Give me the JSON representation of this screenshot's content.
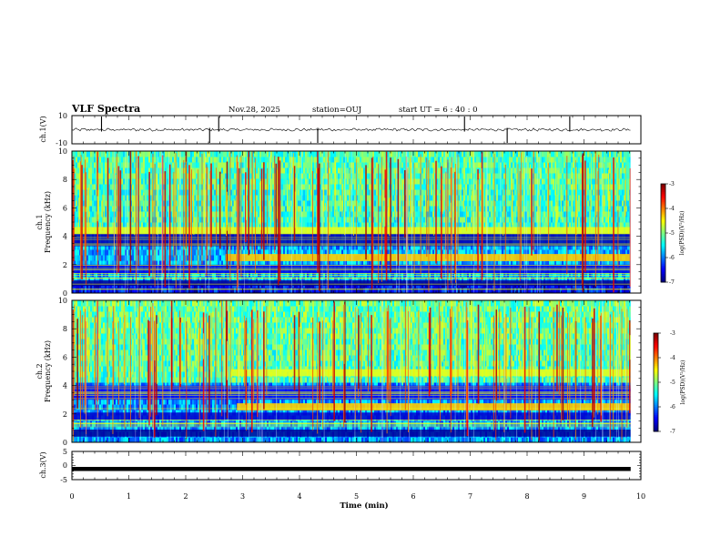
{
  "header": {
    "title": "VLF Spectra",
    "date": "Nov.28, 2025",
    "station": "station=OUJ",
    "start_ut": "start  UT =   6  : 40 : 0"
  },
  "chart_data": [
    {
      "type": "line",
      "name": "ch.1 waveform",
      "ylabel": "ch.1(V)",
      "ylim": [
        -10,
        10
      ],
      "yticks": [
        "10",
        "-10"
      ],
      "xlim": [
        0,
        10
      ],
      "baseline": 0,
      "spikes_min": [
        0.52,
        2.42,
        2.58,
        4.32,
        6.9,
        7.65,
        8.75
      ]
    },
    {
      "type": "heatmap",
      "name": "ch.1 spectrogram",
      "ylabel": "ch.1\nFrequency (kHz)",
      "ylabel_lines": [
        "ch.1",
        "Frequency (kHz)"
      ],
      "yticks": [
        "0",
        "2",
        "4",
        "6",
        "8",
        "10"
      ],
      "ylim": [
        0,
        10
      ],
      "xlim": [
        0,
        9.82
      ],
      "colorbar": {
        "label": "log(PSD)(V²/Hz)",
        "ticks": [
          "-3",
          "-4",
          "-5",
          "-6",
          "-7"
        ],
        "range": [
          -7,
          -3
        ]
      },
      "bands_khz": [
        2.5,
        4.4
      ],
      "background_level": -5.3
    },
    {
      "type": "heatmap",
      "name": "ch.2 spectrogram",
      "ylabel": "ch.2\nFrequency (kHz)",
      "ylabel_lines": [
        "ch.2",
        "Frequency (kHz)"
      ],
      "yticks": [
        "0",
        "2",
        "4",
        "6",
        "8",
        "10"
      ],
      "ylim": [
        0,
        10
      ],
      "xlim": [
        0,
        9.82
      ],
      "colorbar": {
        "label": "log(PSD)(V²/Hz)",
        "ticks": [
          "-3",
          "-4",
          "-5",
          "-6",
          "-7"
        ],
        "range": [
          -7,
          -3
        ]
      },
      "bands_khz": [
        2.5,
        4.9
      ],
      "band_start_min": 2.8,
      "background_level": -5.2
    },
    {
      "type": "line",
      "name": "ch.3 waveform",
      "ylabel": "ch.3(V)",
      "ylim": [
        -5,
        5
      ],
      "yticks": [
        "5",
        "0",
        "-5"
      ],
      "xlim": [
        0,
        9.82
      ],
      "level": -1.2,
      "xlabel": "Time  (min)",
      "xticks": [
        "0",
        "1",
        "2",
        "3",
        "4",
        "5",
        "6",
        "7",
        "8",
        "9",
        "10"
      ]
    }
  ]
}
